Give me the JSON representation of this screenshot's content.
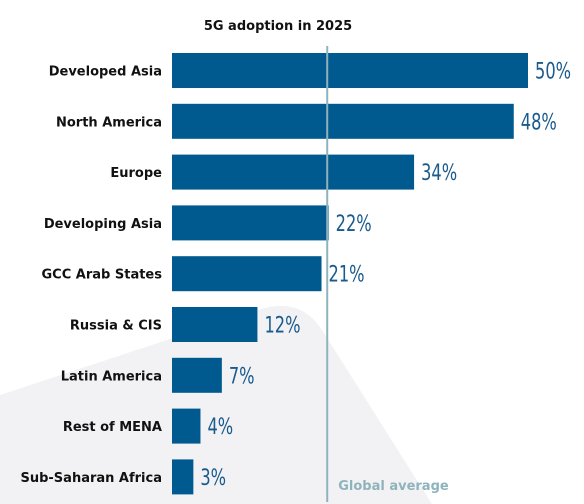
{
  "chart_data": {
    "type": "bar",
    "orientation": "horizontal",
    "title": "5G adoption in 2025",
    "categories": [
      "Developed Asia",
      "North America",
      "Europe",
      "Developing Asia",
      "GCC Arab States",
      "Russia & CIS",
      "Latin America",
      "Rest of MENA",
      "Sub-Saharan Africa"
    ],
    "values": [
      50,
      48,
      34,
      22,
      21,
      12,
      7,
      4,
      3
    ],
    "value_suffix": "%",
    "xlim": [
      0,
      50
    ],
    "grid": false,
    "reference_line": {
      "label": "Global average",
      "value": 21.8
    },
    "colors": {
      "bar": "#005a8f",
      "value_label": "#1a5a8c",
      "reference_line": "#8fb3bd",
      "watermark": "#f2f2f4"
    }
  }
}
